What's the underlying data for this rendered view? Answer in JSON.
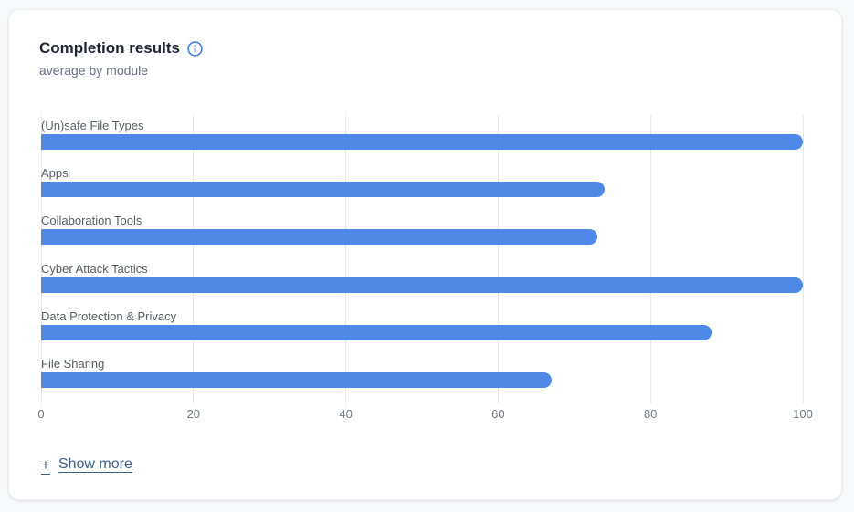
{
  "card": {
    "title": "Completion results",
    "subtitle": "average by module",
    "show_more": {
      "icon": "+",
      "label": "Show more"
    }
  },
  "chart_data": {
    "type": "bar",
    "orientation": "horizontal",
    "title": "Completion results",
    "subtitle": "average by module",
    "categories": [
      "(Un)safe File Types",
      "Apps",
      "Collaboration Tools",
      "Cyber Attack Tactics",
      "Data Protection & Privacy",
      "File Sharing"
    ],
    "values": [
      100,
      74,
      73,
      100,
      88,
      67
    ],
    "xlabel": "",
    "ylabel": "",
    "xlim": [
      0,
      100
    ],
    "xticks": [
      0,
      20,
      40,
      60,
      80,
      100
    ],
    "grid": true,
    "legend_position": "none",
    "bar_color": "#4e89e8"
  },
  "colors": {
    "bar": "#4e89e8",
    "accent_blue": "#4080e8",
    "link": "#3b6086",
    "gridline": "#e5e7ea",
    "title_text": "#1d2433",
    "subtitle_text": "#667085",
    "axis_text": "#6e7783",
    "category_text": "#585c63",
    "card_background": "#ffffff",
    "page_background": "#f7f8fa"
  }
}
